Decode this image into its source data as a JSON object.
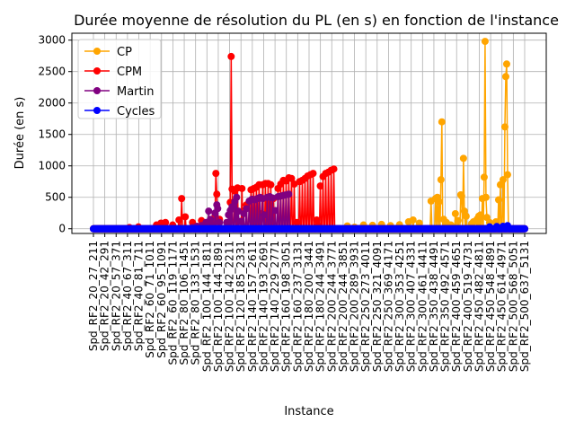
{
  "chart_data": {
    "type": "line",
    "title": "Durée moyenne de résolution du PL (en s) en fonction de l'instance",
    "xlabel": "Instance",
    "ylabel": "Durée (en s)",
    "ylim": [
      -75,
      3110
    ],
    "yticks": [
      0,
      500,
      1000,
      1500,
      2000,
      2500,
      3000
    ],
    "grid": true,
    "legend_position": "upper left",
    "xtick_labels": [
      "Spd_RF2_20_27_211",
      "Spd_RF2_20_42_291",
      "Spd_RF2_20_57_371",
      "Spd_RF2_40_67_311",
      "Spd_RF2_40_81_711",
      "Spd_RF2_60_71_1011",
      "Spd_RF2_60_95_1091",
      "Spd_RF2_60_119_1171",
      "Spd_RF2_80_106_1451",
      "Spd_RF2_80_133_1531",
      "Spd_RF2_100_144_1811",
      "Spd_RF2_100_144_1891",
      "Spd_RF2_100_142_2211",
      "Spd_RF2_120_185_2331",
      "Spd_RF2_140_157_2611",
      "Spd_RF2_140_193_2691",
      "Spd_RF2_140_229_2771",
      "Spd_RF2_160_198_3051",
      "Spd_RF2_160_237_3131",
      "Spd_RF2_180_200_3441",
      "Spd_RF2_180_244_3491",
      "Spd_RF2_200_244_3771",
      "Spd_RF2_200_244_3851",
      "Spd_RF2_200_289_3931",
      "Spd_RF2_250_273_4011",
      "Spd_RF2_250_321_4091",
      "Spd_RF2_250_369_4171",
      "Spd_RF2_300_353_4251",
      "Spd_RF2_300_407_4331",
      "Spd_RF2_300_461_4411",
      "Spd_RF2_350_438_4491",
      "Spd_RF2_350_492_4571",
      "Spd_RF2_400_459_4651",
      "Spd_RF2_400_519_4731",
      "Spd_RF2_450_482_4811",
      "Spd_RF2_450_548_4891",
      "Spd_RF2_450_614_4971",
      "Spd_RF2_500_568_5051",
      "Spd_RF2_500_637_5131"
    ],
    "n_points": 480,
    "series": [
      {
        "name": "CP",
        "color": "#ffa500",
        "spikes": [
          [
            282,
            45
          ],
          [
            290,
            25
          ],
          [
            300,
            60
          ],
          [
            310,
            55
          ],
          [
            320,
            70
          ],
          [
            330,
            50
          ],
          [
            340,
            65
          ],
          [
            350,
            110
          ],
          [
            355,
            140
          ],
          [
            362,
            90
          ],
          [
            375,
            440
          ],
          [
            380,
            480
          ],
          [
            382,
            500
          ],
          [
            384,
            430
          ],
          [
            386,
            780
          ],
          [
            387,
            1700
          ],
          [
            389,
            150
          ],
          [
            392,
            100
          ],
          [
            397,
            60
          ],
          [
            402,
            240
          ],
          [
            405,
            130
          ],
          [
            408,
            540
          ],
          [
            409,
            520
          ],
          [
            411,
            1120
          ],
          [
            412,
            280
          ],
          [
            414,
            200
          ],
          [
            420,
            80
          ],
          [
            422,
            110
          ],
          [
            426,
            150
          ],
          [
            428,
            200
          ],
          [
            430,
            220
          ],
          [
            432,
            480
          ],
          [
            434,
            820
          ],
          [
            435,
            2980
          ],
          [
            436,
            500
          ],
          [
            437,
            180
          ],
          [
            440,
            100
          ],
          [
            447,
            110
          ],
          [
            450,
            460
          ],
          [
            452,
            700
          ],
          [
            455,
            780
          ],
          [
            457,
            1620
          ],
          [
            458,
            2420
          ],
          [
            459,
            2620
          ],
          [
            460,
            860
          ]
        ]
      },
      {
        "name": "CPM",
        "color": "#ff0000",
        "spikes": [
          [
            40,
            20
          ],
          [
            50,
            30
          ],
          [
            70,
            60
          ],
          [
            75,
            90
          ],
          [
            80,
            100
          ],
          [
            88,
            60
          ],
          [
            95,
            140
          ],
          [
            98,
            480
          ],
          [
            102,
            190
          ],
          [
            110,
            100
          ],
          [
            120,
            130
          ],
          [
            130,
            120
          ],
          [
            135,
            200
          ],
          [
            136,
            880
          ],
          [
            137,
            550
          ],
          [
            140,
            150
          ],
          [
            150,
            60
          ],
          [
            152,
            420
          ],
          [
            153,
            2740
          ],
          [
            154,
            630
          ],
          [
            157,
            600
          ],
          [
            160,
            650
          ],
          [
            165,
            640
          ],
          [
            170,
            380
          ],
          [
            175,
            620
          ],
          [
            178,
            640
          ],
          [
            181,
            660
          ],
          [
            184,
            700
          ],
          [
            187,
            240
          ],
          [
            188,
            700
          ],
          [
            191,
            720
          ],
          [
            194,
            720
          ],
          [
            197,
            700
          ],
          [
            200,
            480
          ],
          [
            205,
            640
          ],
          [
            208,
            710
          ],
          [
            211,
            770
          ],
          [
            214,
            760
          ],
          [
            217,
            810
          ],
          [
            220,
            800
          ],
          [
            223,
            710
          ],
          [
            226,
            100
          ],
          [
            229,
            750
          ],
          [
            232,
            770
          ],
          [
            235,
            800
          ],
          [
            238,
            840
          ],
          [
            241,
            860
          ],
          [
            244,
            880
          ],
          [
            248,
            140
          ],
          [
            249,
            60
          ],
          [
            252,
            680
          ],
          [
            255,
            830
          ],
          [
            258,
            880
          ],
          [
            261,
            900
          ],
          [
            264,
            930
          ],
          [
            267,
            950
          ]
        ]
      },
      {
        "name": "Martin",
        "color": "#800080",
        "spikes": [
          [
            110,
            20
          ],
          [
            115,
            40
          ],
          [
            120,
            50
          ],
          [
            125,
            100
          ],
          [
            128,
            280
          ],
          [
            130,
            150
          ],
          [
            133,
            60
          ],
          [
            135,
            250
          ],
          [
            137,
            380
          ],
          [
            138,
            320
          ],
          [
            140,
            100
          ],
          [
            148,
            100
          ],
          [
            150,
            220
          ],
          [
            152,
            290
          ],
          [
            154,
            350
          ],
          [
            157,
            430
          ],
          [
            159,
            500
          ],
          [
            161,
            280
          ],
          [
            164,
            120
          ],
          [
            167,
            240
          ],
          [
            170,
            320
          ],
          [
            173,
            440
          ],
          [
            176,
            470
          ],
          [
            179,
            460
          ],
          [
            182,
            480
          ],
          [
            185,
            500
          ],
          [
            188,
            480
          ],
          [
            190,
            220
          ],
          [
            193,
            500
          ],
          [
            196,
            510
          ],
          [
            199,
            490
          ],
          [
            202,
            290
          ],
          [
            205,
            510
          ],
          [
            208,
            520
          ],
          [
            211,
            530
          ],
          [
            214,
            540
          ],
          [
            217,
            550
          ]
        ]
      },
      {
        "name": "Cycles",
        "color": "#0000ff",
        "spikes": [
          [
            440,
            30
          ],
          [
            448,
            35
          ],
          [
            455,
            40
          ],
          [
            460,
            50
          ]
        ]
      }
    ]
  }
}
